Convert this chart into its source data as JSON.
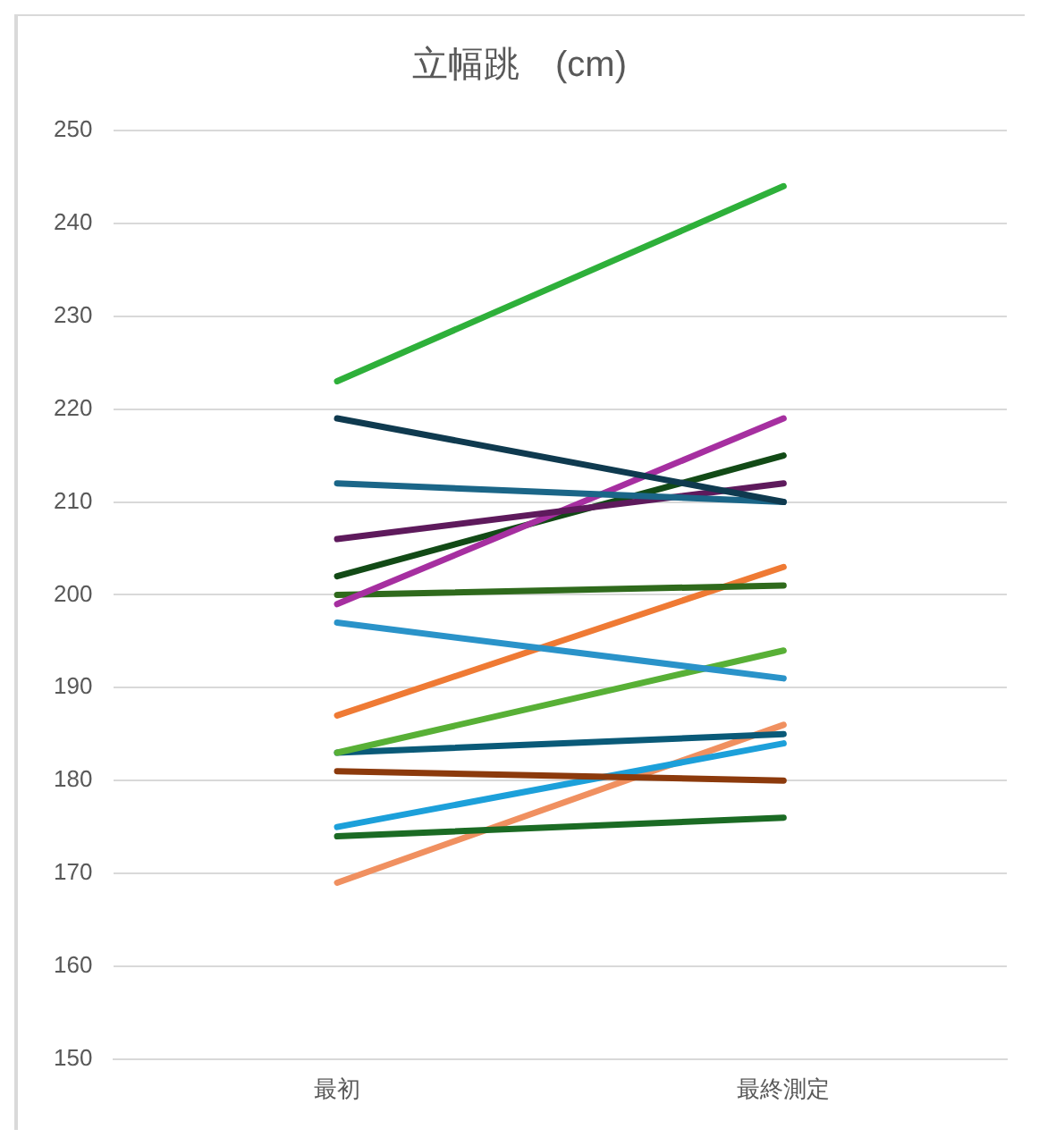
{
  "chart_data": {
    "type": "line",
    "title": "立幅跳　(cm)",
    "categories": [
      "最初",
      "最終測定"
    ],
    "series": [
      {
        "color": "#2eb03a",
        "values": [
          223,
          244
        ]
      },
      {
        "color": "#0f3a4f",
        "values": [
          219,
          210
        ]
      },
      {
        "color": "#1b6688",
        "values": [
          212,
          210
        ]
      },
      {
        "color": "#5e1a5c",
        "values": [
          206,
          212
        ]
      },
      {
        "color": "#a62fa0",
        "values": [
          199,
          219
        ]
      },
      {
        "color": "#124a16",
        "values": [
          202,
          215
        ]
      },
      {
        "color": "#2f6a1c",
        "values": [
          200,
          201
        ]
      },
      {
        "color": "#2a93c9",
        "values": [
          197,
          191
        ]
      },
      {
        "color": "#ef7a34",
        "values": [
          187,
          203
        ]
      },
      {
        "color": "#58b036",
        "values": [
          183,
          194
        ]
      },
      {
        "color": "#0a5a78",
        "values": [
          183,
          185
        ]
      },
      {
        "color": "#8c3a0c",
        "values": [
          181,
          180
        ]
      },
      {
        "color": "#1ca0da",
        "values": [
          175,
          184
        ]
      },
      {
        "color": "#1b6b24",
        "values": [
          174,
          176
        ]
      },
      {
        "color": "#f09060",
        "values": [
          169,
          186
        ]
      }
    ],
    "ylim": [
      150,
      250
    ],
    "yticks": [
      150,
      160,
      170,
      180,
      190,
      200,
      210,
      220,
      230,
      240,
      250
    ],
    "grid": "y",
    "legend": false,
    "marker": "none",
    "line_style": "solid"
  }
}
